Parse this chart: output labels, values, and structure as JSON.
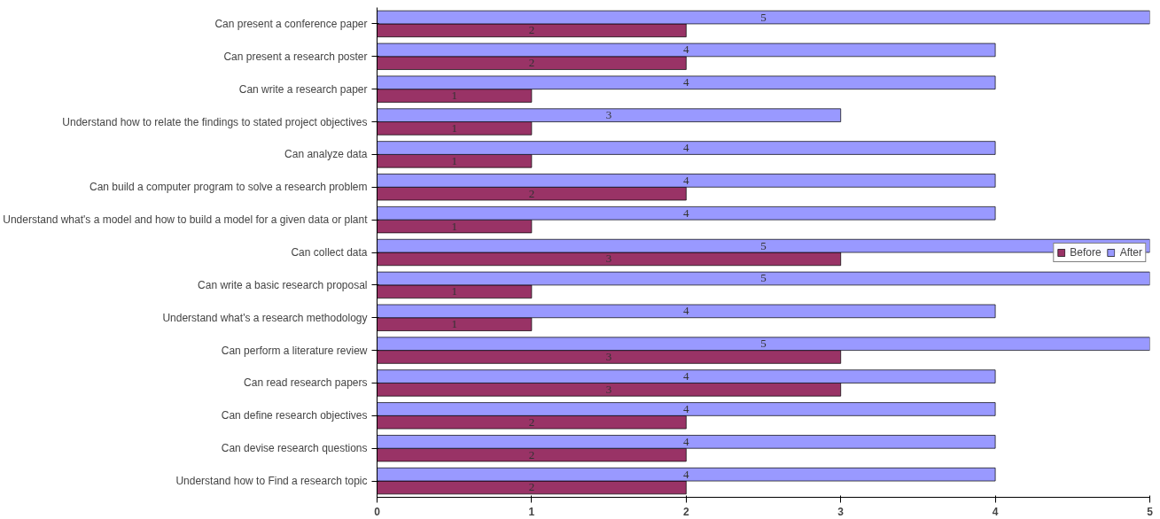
{
  "chart_data": {
    "type": "bar",
    "orientation": "horizontal",
    "categories": [
      "Can present a conference paper",
      "Can present a research poster",
      "Can write a research paper",
      "Understand how to relate the findings to stated project objectives",
      "Can analyze data",
      "Can build a computer program to solve a research problem",
      "Understand what's a model and how to build a model for a given data or plant",
      "Can collect data",
      "Can write a basic research proposal",
      "Understand what's a research methodology",
      "Can perform a literature review",
      "Can read research papers",
      "Can define research objectives",
      "Can devise research questions",
      "Understand how to Find a research topic"
    ],
    "series": [
      {
        "name": "Before",
        "color": "#993366",
        "values": [
          2,
          2,
          1,
          1,
          1,
          2,
          1,
          3,
          1,
          1,
          3,
          3,
          2,
          2,
          2
        ]
      },
      {
        "name": "After",
        "color": "#9999ff",
        "values": [
          5,
          4,
          4,
          3,
          4,
          4,
          4,
          5,
          5,
          4,
          5,
          4,
          4,
          4,
          4
        ]
      }
    ],
    "xlim": [
      0,
      5
    ],
    "xticks": [
      0,
      1,
      2,
      3,
      4,
      5
    ],
    "data_labels": true,
    "legend": "right",
    "grid": false
  }
}
